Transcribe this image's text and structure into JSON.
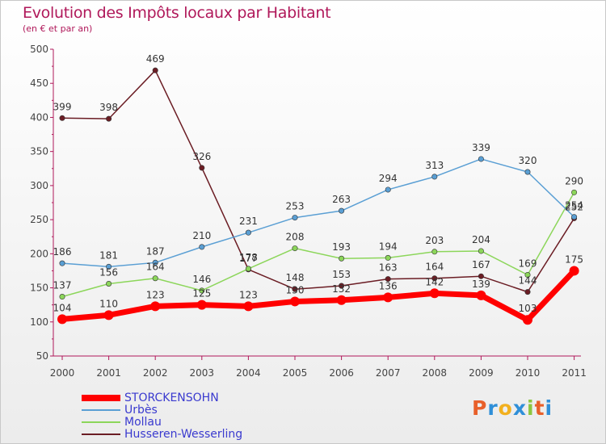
{
  "chart_data": {
    "type": "line",
    "title": "Evolution des Impôts locaux par Habitant",
    "subtitle": "(en € et par an)",
    "xlabel": "",
    "ylabel": "",
    "ylim": [
      50,
      500
    ],
    "ytick_values": [
      50,
      100,
      150,
      200,
      250,
      300,
      350,
      400,
      450,
      500
    ],
    "categories": [
      "2000",
      "2001",
      "2002",
      "2003",
      "2004",
      "2005",
      "2006",
      "2007",
      "2008",
      "2009",
      "2010",
      "2011"
    ],
    "legend_position": "bottom-left",
    "grid": false,
    "series": [
      {
        "name": "STORCKENSOHN",
        "color": "#ff0000",
        "values": [
          104,
          110,
          123,
          125,
          123,
          130,
          132,
          136,
          142,
          139,
          103,
          175
        ]
      },
      {
        "name": "Urbès",
        "color": "#5a9fd4",
        "values": [
          186,
          181,
          187,
          210,
          231,
          253,
          263,
          294,
          313,
          339,
          320,
          254
        ]
      },
      {
        "name": "Mollau",
        "color": "#8cd65a",
        "values": [
          137,
          156,
          164,
          146,
          178,
          208,
          193,
          194,
          203,
          204,
          169,
          290
        ]
      },
      {
        "name": "Husseren-Wesserling",
        "color": "#6b1d24",
        "values": [
          399,
          398,
          469,
          326,
          177,
          148,
          153,
          163,
          164,
          167,
          144,
          252
        ]
      }
    ]
  }
}
